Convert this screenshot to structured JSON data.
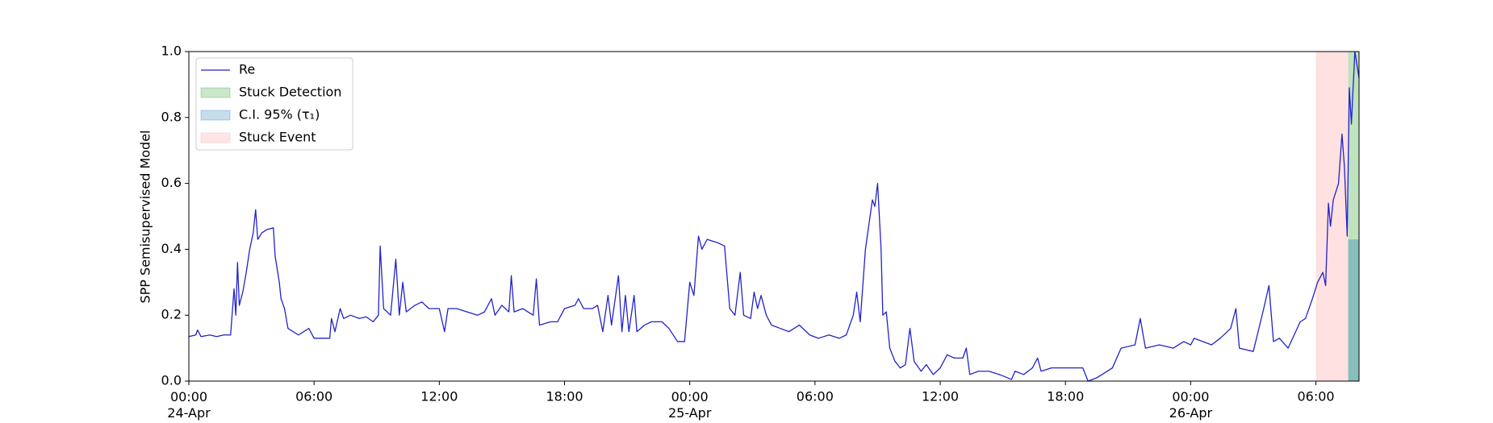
{
  "chart_data": {
    "type": "line",
    "ylabel": "SPP Semisupervised Model",
    "xlim": [
      "1900-04-24 00:00",
      "1900-04-26 08:04"
    ],
    "xticks": [
      {
        "value": "1900-04-24 00:00",
        "label": "00:00\n24-Apr\n1900"
      },
      {
        "value": "1900-04-24 06:00",
        "label": "06:00"
      },
      {
        "value": "1900-04-24 12:00",
        "label": "12:00"
      },
      {
        "value": "1900-04-24 18:00",
        "label": "18:00"
      },
      {
        "value": "1900-04-25 00:00",
        "label": "00:00\n25-Apr"
      },
      {
        "value": "1900-04-25 06:00",
        "label": "06:00"
      },
      {
        "value": "1900-04-25 12:00",
        "label": "12:00"
      },
      {
        "value": "1900-04-25 18:00",
        "label": "18:00"
      },
      {
        "value": "1900-04-26 00:00",
        "label": "00:00\n26-Apr"
      },
      {
        "value": "1900-04-26 06:00",
        "label": "06:00"
      }
    ],
    "ylim": [
      0,
      1
    ],
    "yticks": [
      {
        "value": 0,
        "label": "0.0"
      },
      0.2,
      0.4,
      0.6,
      0.8,
      {
        "value": 1,
        "label": "1.0"
      }
    ],
    "legend": "upper left",
    "bands": [
      {
        "name": "Stuck Detection",
        "color": "#2ca02c",
        "span": [
          "1900-04-26 07:33",
          "1900-04-26 08:04"
        ]
      },
      {
        "name": "C.I. 95% (τ₁)",
        "color": "#1f77b4",
        "span": [
          "1900-04-26 07:33",
          "1900-04-26 08:04"
        ],
        "y": [
          0,
          0.43
        ]
      },
      {
        "name": "Stuck Event",
        "color": "#ff9c9c",
        "span": [
          "1900-04-26 06:00",
          "1900-04-26 07:33"
        ]
      }
    ],
    "x": [
      "1900-04-24 00:00",
      "1900-04-24 00:20",
      "1900-04-24 00:25",
      "1900-04-24 00:35",
      "1900-04-24 01:00",
      "1900-04-24 01:20",
      "1900-04-24 01:40",
      "1900-04-24 02:00",
      "1900-04-24 02:10",
      "1900-04-24 02:15",
      "1900-04-24 02:20",
      "1900-04-24 02:25",
      "1900-04-24 02:35",
      "1900-04-24 02:45",
      "1900-04-24 02:55",
      "1900-04-24 03:05",
      "1900-04-24 03:12",
      "1900-04-24 03:18",
      "1900-04-24 03:30",
      "1900-04-24 03:45",
      "1900-04-24 04:03",
      "1900-04-24 04:08",
      "1900-04-24 04:20",
      "1900-04-24 04:25",
      "1900-04-24 04:35",
      "1900-04-24 04:45",
      "1900-04-24 05:00",
      "1900-04-24 05:15",
      "1900-04-24 05:30",
      "1900-04-24 05:45",
      "1900-04-24 06:00",
      "1900-04-24 06:30",
      "1900-04-24 06:45",
      "1900-04-24 06:50",
      "1900-04-24 07:00",
      "1900-04-24 07:15",
      "1900-04-24 07:25",
      "1900-04-24 07:45",
      "1900-04-24 08:10",
      "1900-04-24 08:30",
      "1900-04-24 08:50",
      "1900-04-24 09:05",
      "1900-04-24 09:10",
      "1900-04-24 09:20",
      "1900-04-24 09:40",
      "1900-04-24 09:55",
      "1900-04-24 10:05",
      "1900-04-24 10:15",
      "1900-04-24 10:25",
      "1900-04-24 10:50",
      "1900-04-24 11:10",
      "1900-04-24 11:30",
      "1900-04-24 12:00",
      "1900-04-24 12:15",
      "1900-04-24 12:25",
      "1900-04-24 12:50",
      "1900-04-24 13:20",
      "1900-04-24 13:50",
      "1900-04-24 14:10",
      "1900-04-24 14:30",
      "1900-04-24 14:40",
      "1900-04-24 15:00",
      "1900-04-24 15:20",
      "1900-04-24 15:27",
      "1900-04-24 15:35",
      "1900-04-24 16:00",
      "1900-04-24 16:30",
      "1900-04-24 16:39",
      "1900-04-24 16:48",
      "1900-04-24 17:20",
      "1900-04-24 17:40",
      "1900-04-24 18:00",
      "1900-04-24 18:30",
      "1900-04-24 18:40",
      "1900-04-24 18:55",
      "1900-04-24 19:20",
      "1900-04-24 19:35",
      "1900-04-24 19:50",
      "1900-04-24 20:05",
      "1900-04-24 20:15",
      "1900-04-24 20:35",
      "1900-04-24 20:45",
      "1900-04-24 20:55",
      "1900-04-24 21:05",
      "1900-04-24 21:20",
      "1900-04-24 21:28",
      "1900-04-24 21:50",
      "1900-04-24 22:10",
      "1900-04-24 22:40",
      "1900-04-24 23:00",
      "1900-04-24 23:25",
      "1900-04-24 23:45",
      "1900-04-25 00:00",
      "1900-04-25 00:12",
      "1900-04-25 00:25",
      "1900-04-25 00:35",
      "1900-04-25 00:50",
      "1900-04-25 01:20",
      "1900-04-25 01:40",
      "1900-04-25 01:55",
      "1900-04-25 02:10",
      "1900-04-25 02:25",
      "1900-04-25 02:35",
      "1900-04-25 02:55",
      "1900-04-25 03:05",
      "1900-04-25 03:15",
      "1900-04-25 03:25",
      "1900-04-25 03:40",
      "1900-04-25 03:55",
      "1900-04-25 04:20",
      "1900-04-25 04:45",
      "1900-04-25 05:15",
      "1900-04-25 05:45",
      "1900-04-25 06:10",
      "1900-04-25 06:40",
      "1900-04-25 07:10",
      "1900-04-25 07:30",
      "1900-04-25 07:50",
      "1900-04-25 08:00",
      "1900-04-25 08:10",
      "1900-04-25 08:25",
      "1900-04-25 08:45",
      "1900-04-25 08:52",
      "1900-04-25 09:00",
      "1900-04-25 09:10",
      "1900-04-25 09:15",
      "1900-04-25 09:25",
      "1900-04-25 09:35",
      "1900-04-25 09:50",
      "1900-04-25 10:05",
      "1900-04-25 10:20",
      "1900-04-25 10:33",
      "1900-04-25 10:45",
      "1900-04-25 11:05",
      "1900-04-25 11:20",
      "1900-04-25 11:40",
      "1900-04-25 12:00",
      "1900-04-25 12:20",
      "1900-04-25 12:40",
      "1900-04-25 13:05",
      "1900-04-25 13:15",
      "1900-04-25 13:25",
      "1900-04-25 13:50",
      "1900-04-25 14:20",
      "1900-04-25 14:50",
      "1900-04-25 15:25",
      "1900-04-25 15:35",
      "1900-04-25 16:00",
      "1900-04-25 16:25",
      "1900-04-25 16:40",
      "1900-04-25 16:50",
      "1900-04-25 17:20",
      "1900-04-25 18:00",
      "1900-04-25 18:50",
      "1900-04-25 19:05",
      "1900-04-25 19:30",
      "1900-04-25 20:15",
      "1900-04-25 20:40",
      "1900-04-25 21:20",
      "1900-04-25 21:35",
      "1900-04-25 21:50",
      "1900-04-25 22:30",
      "1900-04-25 23:10",
      "1900-04-25 23:40",
      "1900-04-26 00:00",
      "1900-04-26 00:10",
      "1900-04-26 01:00",
      "1900-04-26 01:25",
      "1900-04-26 01:55",
      "1900-04-26 02:10",
      "1900-04-26 02:20",
      "1900-04-26 03:00",
      "1900-04-26 03:30",
      "1900-04-26 03:45",
      "1900-04-26 03:58",
      "1900-04-26 04:15",
      "1900-04-26 04:40",
      "1900-04-26 05:15",
      "1900-04-26 05:30",
      "1900-04-26 05:50",
      "1900-04-26 06:05",
      "1900-04-26 06:20",
      "1900-04-26 06:28",
      "1900-04-26 06:36",
      "1900-04-26 06:42",
      "1900-04-26 06:50",
      "1900-04-26 07:05",
      "1900-04-26 07:15",
      "1900-04-26 07:22",
      "1900-04-26 07:30",
      "1900-04-26 07:36",
      "1900-04-26 07:42",
      "1900-04-26 07:52",
      "1900-04-26 08:04"
    ],
    "series": [
      {
        "name": "Re",
        "color": "#2222cc",
        "values": [
          0.135,
          0.14,
          0.155,
          0.135,
          0.14,
          0.135,
          0.14,
          0.14,
          0.28,
          0.2,
          0.36,
          0.23,
          0.27,
          0.33,
          0.4,
          0.45,
          0.52,
          0.43,
          0.45,
          0.46,
          0.465,
          0.38,
          0.3,
          0.25,
          0.22,
          0.16,
          0.15,
          0.14,
          0.15,
          0.16,
          0.13,
          0.13,
          0.13,
          0.19,
          0.15,
          0.22,
          0.19,
          0.2,
          0.19,
          0.195,
          0.18,
          0.2,
          0.41,
          0.22,
          0.2,
          0.37,
          0.2,
          0.3,
          0.21,
          0.23,
          0.24,
          0.22,
          0.22,
          0.15,
          0.22,
          0.22,
          0.21,
          0.2,
          0.21,
          0.25,
          0.2,
          0.23,
          0.21,
          0.32,
          0.21,
          0.22,
          0.2,
          0.31,
          0.17,
          0.18,
          0.18,
          0.22,
          0.23,
          0.25,
          0.22,
          0.22,
          0.23,
          0.15,
          0.26,
          0.17,
          0.32,
          0.15,
          0.26,
          0.15,
          0.26,
          0.15,
          0.17,
          0.18,
          0.18,
          0.16,
          0.12,
          0.12,
          0.3,
          0.26,
          0.44,
          0.4,
          0.43,
          0.42,
          0.41,
          0.22,
          0.2,
          0.33,
          0.2,
          0.19,
          0.27,
          0.22,
          0.26,
          0.2,
          0.17,
          0.16,
          0.15,
          0.17,
          0.14,
          0.13,
          0.14,
          0.13,
          0.14,
          0.2,
          0.27,
          0.18,
          0.4,
          0.55,
          0.53,
          0.6,
          0.4,
          0.2,
          0.21,
          0.1,
          0.06,
          0.04,
          0.05,
          0.16,
          0.06,
          0.03,
          0.05,
          0.02,
          0.04,
          0.08,
          0.07,
          0.07,
          0.1,
          0.02,
          0.03,
          0.03,
          0.02,
          0.005,
          0.03,
          0.02,
          0.04,
          0.07,
          0.03,
          0.04,
          0.04,
          0.04,
          0.0,
          0.01,
          0.04,
          0.1,
          0.11,
          0.19,
          0.1,
          0.11,
          0.1,
          0.12,
          0.11,
          0.13,
          0.11,
          0.13,
          0.16,
          0.22,
          0.1,
          0.09,
          0.22,
          0.29,
          0.12,
          0.13,
          0.1,
          0.18,
          0.19,
          0.25,
          0.3,
          0.33,
          0.29,
          0.54,
          0.47,
          0.55,
          0.6,
          0.75,
          0.65,
          0.44,
          0.89,
          0.78,
          1.0,
          0.92
        ]
      }
    ]
  }
}
